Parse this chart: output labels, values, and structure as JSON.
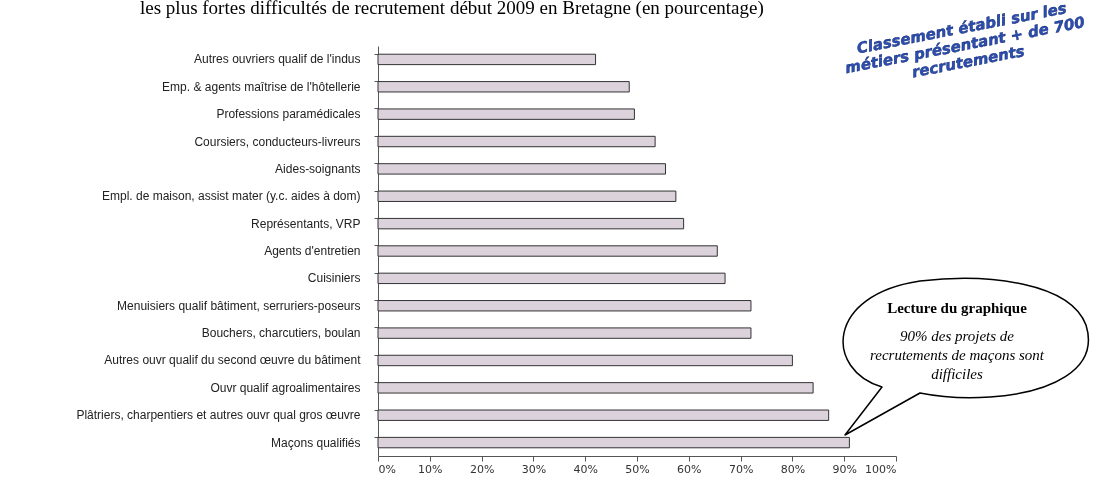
{
  "chart_data": {
    "type": "bar",
    "orientation": "horizontal",
    "title": "les plus fortes difficultés de recrutement début 2009 en Bretagne (en pourcentage)",
    "categories": [
      "Autres ouvriers qualif de l'indus",
      "Emp. & agents maîtrise de l'hôtellerie",
      "Professions paramédicales",
      "Coursiers, conducteurs-livreurs",
      "Aides-soignants",
      "Empl. de maison, assist mater (y.c. aides à dom)",
      "Représentants, VRP",
      "Agents d'entretien",
      "Cuisiniers",
      "Menuisiers qualif bâtiment, serruriers-poseurs",
      "Bouchers, charcutiers, boulan",
      "Autres ouvr qualif du second œuvre du bâtiment",
      "Ouvr qualif agroalimentaires",
      "Plâtriers, charpentiers et autres ouvr qual gros œuvre",
      "Maçons qualifiés"
    ],
    "values": [
      42,
      48.5,
      49.5,
      53.5,
      55.5,
      57.5,
      59,
      65.5,
      67,
      72,
      72,
      80,
      84,
      87,
      91
    ],
    "color": "#dcd2dc",
    "xlim": [
      0,
      100
    ],
    "xticks": [
      {
        "value": 0,
        "label": "0%"
      },
      {
        "value": 10,
        "label": "10%"
      },
      {
        "value": 20,
        "label": "20%"
      },
      {
        "value": 30,
        "label": "30%"
      },
      {
        "value": 40,
        "label": "40%"
      },
      {
        "value": 50,
        "label": "50%"
      },
      {
        "value": 60,
        "label": "60%"
      },
      {
        "value": 70,
        "label": "70%"
      },
      {
        "value": 80,
        "label": "80%"
      },
      {
        "value": 90,
        "label": "90%"
      },
      {
        "value": 100,
        "label": "100%"
      }
    ],
    "grid": false,
    "annotations": [
      "Classement établi sur les métiers présentant + de 700 recrutements",
      "Lecture du graphique",
      "90% des projets de recrutements de maçons sont difficiles"
    ]
  }
}
